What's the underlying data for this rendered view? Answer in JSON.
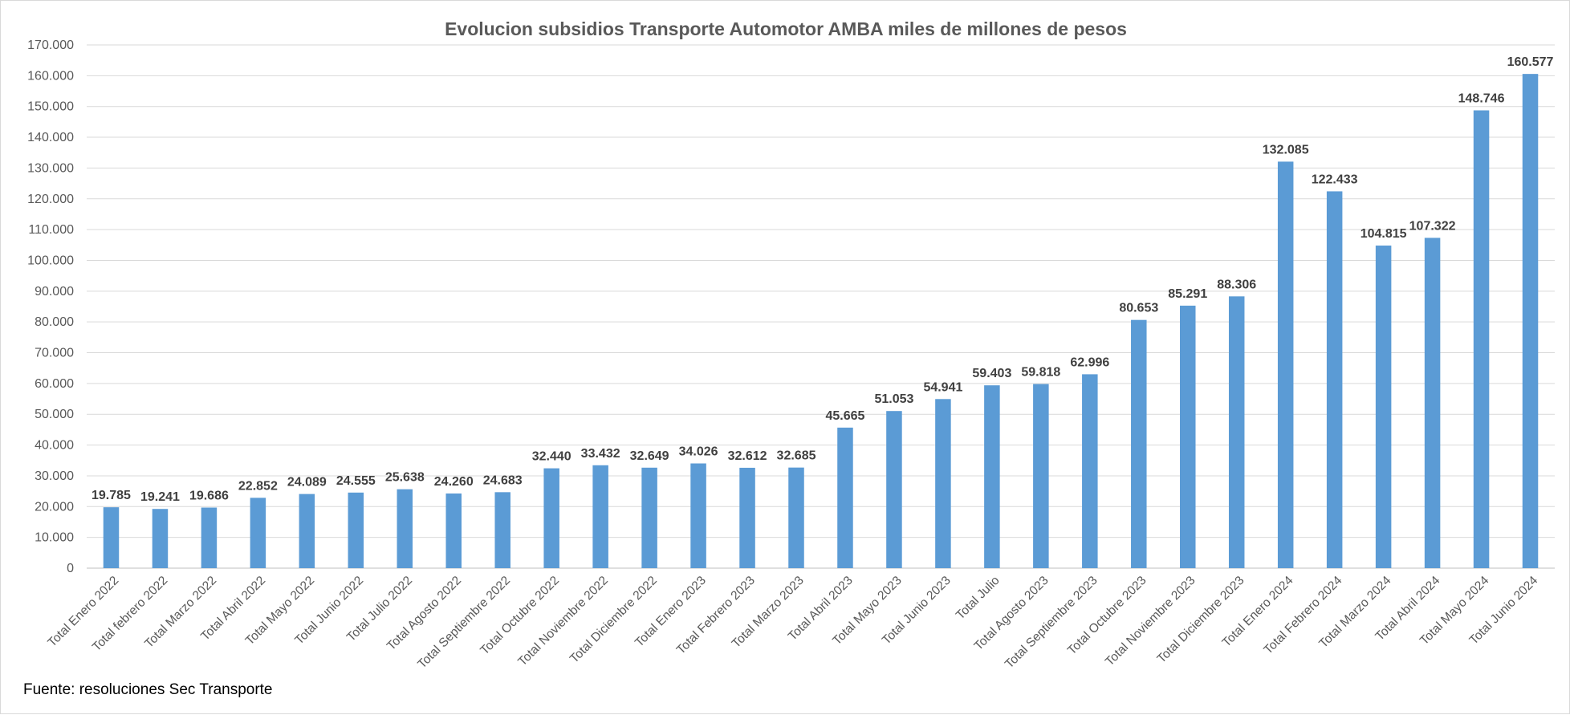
{
  "chart_data": {
    "type": "bar",
    "title": "Evolucion subsidios Transporte Automotor AMBA miles de millones de pesos",
    "xlabel": "",
    "ylabel": "",
    "ylim": [
      0,
      170000
    ],
    "ytick_step": 10000,
    "ytick_labels": [
      "0",
      "10.000",
      "20.000",
      "30.000",
      "40.000",
      "50.000",
      "60.000",
      "70.000",
      "80.000",
      "90.000",
      "100.000",
      "110.000",
      "120.000",
      "130.000",
      "140.000",
      "150.000",
      "160.000",
      "170.000"
    ],
    "grid": true,
    "legend": "none",
    "bar_color": "#5b9bd5",
    "categories": [
      "Total Enero 2022",
      "Total febrero 2022",
      "Total Marzo 2022",
      "Total Abril 2022",
      "Total Mayo 2022",
      "Total Junio 2022",
      "Total Julio 2022",
      "Total Agosto 2022",
      "Total Septiembre 2022",
      "Total Octubre 2022",
      "Total Noviembre 2022",
      "Total Diciembre 2022",
      "Total Enero 2023",
      "Total Febrero 2023",
      "Total Marzo 2023",
      "Total Abril 2023",
      "Total Mayo 2023",
      "Total Junio 2023",
      "Total Julio",
      "Total Agosto 2023",
      "Total Septiembre 2023",
      "Total Octubre 2023",
      "Total Noviembre 2023",
      "Total Diciembre 2023",
      "Total Enero 2024",
      "Total Febrero 2024",
      "Total Marzo 2024",
      "Total Abril 2024",
      "Total Mayo 2024",
      "Total Junio 2024"
    ],
    "values": [
      19785,
      19241,
      19686,
      22852,
      24089,
      24555,
      25638,
      24260,
      24683,
      32440,
      33432,
      32649,
      34026,
      32612,
      32685,
      45665,
      51053,
      54941,
      59403,
      59818,
      62996,
      80653,
      85291,
      88306,
      132085,
      122433,
      104815,
      107322,
      148746,
      160577
    ],
    "data_labels": [
      "19.785",
      "19.241",
      "19.686",
      "22.852",
      "24.089",
      "24.555",
      "25.638",
      "24.260",
      "24.683",
      "32.440",
      "33.432",
      "32.649",
      "34.026",
      "32.612",
      "32.685",
      "45.665",
      "51.053",
      "54.941",
      "59.403",
      "59.818",
      "62.996",
      "80.653",
      "85.291",
      "88.306",
      "132.085",
      "122.433",
      "104.815",
      "107.322",
      "148.746",
      "160.577"
    ]
  },
  "footer": {
    "source": "Fuente: resoluciones Sec Transporte"
  }
}
